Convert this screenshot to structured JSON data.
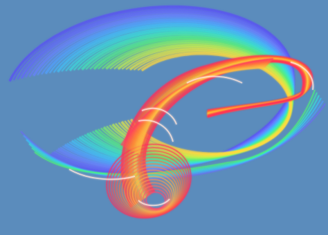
{
  "image": {
    "background_color": "#5b8cbc",
    "palette": [
      "#3a5cff",
      "#6b6cf0",
      "#9a5be0",
      "#3fb8ff",
      "#35e6d0",
      "#4ef07a",
      "#c8f04a",
      "#ffd840",
      "#ff9a2e",
      "#ff5a3c",
      "#ff2f5a",
      "#ffd0c8"
    ]
  }
}
